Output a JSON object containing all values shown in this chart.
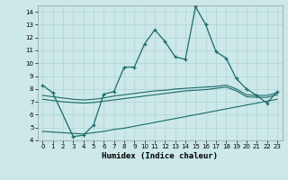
{
  "xlabel": "Humidex (Indice chaleur)",
  "xlim": [
    -0.5,
    23.5
  ],
  "ylim": [
    4,
    14.5
  ],
  "xticks": [
    0,
    1,
    2,
    3,
    4,
    5,
    6,
    7,
    8,
    9,
    10,
    11,
    12,
    13,
    14,
    15,
    16,
    17,
    18,
    19,
    20,
    21,
    22,
    23
  ],
  "yticks": [
    4,
    5,
    6,
    7,
    8,
    9,
    10,
    11,
    12,
    13,
    14
  ],
  "background_color": "#cce8e8",
  "grid_color": "#b0d4d4",
  "line_color": "#1a6b6b",
  "line1_x": [
    0,
    1,
    3,
    4,
    5,
    6,
    7,
    8,
    9,
    10,
    11,
    12,
    13,
    14,
    15,
    16,
    17,
    18,
    19,
    20,
    21,
    22,
    23
  ],
  "line1_y": [
    8.3,
    7.7,
    4.3,
    4.4,
    5.2,
    7.6,
    7.8,
    9.7,
    9.7,
    11.5,
    12.6,
    11.7,
    10.5,
    10.3,
    14.4,
    13.0,
    10.9,
    10.4,
    8.8,
    8.0,
    7.5,
    6.9,
    7.8
  ],
  "line2_x": [
    0,
    1,
    2,
    3,
    4,
    5,
    6,
    7,
    8,
    9,
    10,
    11,
    12,
    13,
    14,
    15,
    16,
    17,
    18,
    19,
    20,
    21,
    22,
    23
  ],
  "line2_y": [
    7.5,
    7.4,
    7.3,
    7.2,
    7.15,
    7.2,
    7.3,
    7.45,
    7.55,
    7.65,
    7.75,
    7.85,
    7.9,
    8.0,
    8.05,
    8.1,
    8.15,
    8.2,
    8.3,
    8.0,
    7.55,
    7.5,
    7.5,
    7.7
  ],
  "line3_x": [
    0,
    1,
    2,
    3,
    4,
    5,
    6,
    7,
    8,
    9,
    10,
    11,
    12,
    13,
    14,
    15,
    16,
    17,
    18,
    19,
    20,
    21,
    22,
    23
  ],
  "line3_y": [
    7.2,
    7.1,
    7.0,
    6.95,
    6.9,
    6.95,
    7.05,
    7.15,
    7.25,
    7.35,
    7.45,
    7.55,
    7.65,
    7.75,
    7.85,
    7.9,
    7.95,
    8.05,
    8.15,
    7.85,
    7.4,
    7.35,
    7.35,
    7.55
  ],
  "line4_x": [
    0,
    1,
    2,
    3,
    4,
    5,
    6,
    7,
    8,
    9,
    10,
    11,
    12,
    13,
    14,
    15,
    16,
    17,
    18,
    19,
    20,
    21,
    22,
    23
  ],
  "line4_y": [
    4.7,
    4.65,
    4.6,
    4.55,
    4.5,
    4.6,
    4.7,
    4.85,
    4.95,
    5.1,
    5.25,
    5.4,
    5.55,
    5.7,
    5.85,
    6.0,
    6.15,
    6.3,
    6.45,
    6.6,
    6.75,
    6.9,
    7.05,
    7.2
  ]
}
